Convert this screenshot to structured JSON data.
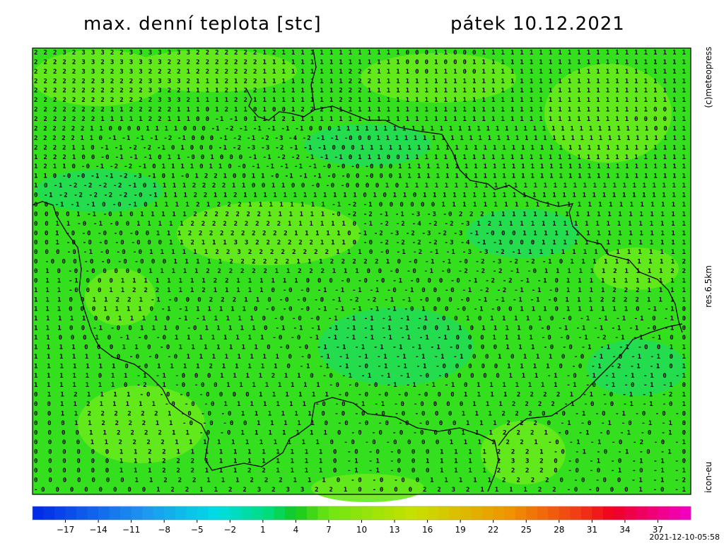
{
  "header": {
    "title": "max. denní teplota [stc]",
    "date": "pátek 10.12.2021"
  },
  "side_labels": {
    "copyright": "(c)meteopress",
    "resolution": "res.6.5km",
    "model": "icon-eu"
  },
  "timestamp": "2021-12-10-05:58",
  "colorbar": {
    "lim": [
      -20,
      40
    ],
    "ticks": [
      {
        "value": -17,
        "label": "−17"
      },
      {
        "value": -14,
        "label": "−14"
      },
      {
        "value": -11,
        "label": "−11"
      },
      {
        "value": -8,
        "label": "−8"
      },
      {
        "value": -5,
        "label": "−5"
      },
      {
        "value": -2,
        "label": "−2"
      },
      1,
      4,
      7,
      10,
      13,
      16,
      19,
      22,
      25,
      28,
      31,
      34,
      37
    ]
  },
  "grid": {
    "rows": [
      "2 2 2 3 2 3 3 3 2 2 3 3 3 3 3 3 3 2 2 2 2 2 2 2 1 2 1 1 1 1 1 1 1 1 1 1 1 1 1 0 0 0 1 1 0 0 0 1 1 1 1 1 1 1 1 1 1 1 1 1 1 1 1 1 1 1 1 1 1",
      "2 2 2 2 2 3 3 2 3 3 3 3 3 3 2 2 2 2 2 2 2 2 2 2 1 1 1 1 1 1 1 1 1 1 1 1 1 1 1 0 0 0 1 0 0 0 1 1 1 1 1 1 1 1 1 1 1 1 1 1 1 1 1 1 1 1 1 1 1",
      "2 2 2 2 2 3 3 2 2 3 3 3 2 2 2 2 1 2 2 2 2 2 2 2 1 1 1 1 1 1 1 1 1 2 2 2 1 1 1 1 0 0 1 1 1 0 0 1 1 1 1 1 1 1 1 1 1 1 1 1 1 1 1 1 1 1 1 1 1",
      "2 2 2 2 2 2 2 3 2 2 2 2 3 3 3 3 2 1 1 1 2 1 2 2 1 1 1 1 1 1 1 1 1 2 2 2 1 1 1 1 1 1 1 1 1 1 1 1 1 1 1 1 1 1 1 1 1 1 1 1 1 1 1 1 1 1 1 1 1",
      "2 2 2 2 2 2 2 2 2 2 2 2 3 3 2 2 1 1 1 1 2 1 2 2 1 1 1 1 1 1 1 1 2 2 2 1 1 1 1 1 1 1 1 1 1 1 1 1 1 1 1 1 1 1 1 1 1 1 1 1 1 1 1 1 1 1 1 1 1",
      "2 2 2 2 2 2 2 2 2 2 2 2 2 3 3 3 2 1 1 1 1 2 2 1 1 1 1 1 1 1 1 1 2 2 1 1 1 1 1 1 1 1 1 1 1 1 1 1 1 1 1 1 1 1 1 1 1 1 1 1 1 1 1 1 1 1 1 1 1",
      "2 2 2 2 2 2 2 2 1 1 2 2 2 2 2 1 1 1 0 1 2 1 1 0 1 0 0 1 2 2 2 1 1 1 1 1 1 1 1 1 1 1 1 1 1 1 1 1 1 1 1 1 1 1 1 1 1 1 1 1 1 1 1 1 1 0 0 1 1",
      "2 2 2 2 2 2 2 1 1 1 1 1 2 2 1 1 1 0 0 -1 -1 0 1 1 1 2 1 1 1 1 1 1 1 1 1 1 1 1 1 1 1 1 1 1 1 1 1 1 1 1 1 1 1 1 1 1 1 1 1 1 1 1 0 0 0 0 1 1",
      "2 2 2 2 2 2 1 1 0 0 0 0 1 1 1 1 0 0 0 -1 -2 -1 -1 -1 -1 -1 0 0 0 1 1 1 1 1 1 1 1 1 1 1 1 1 1 1 1 1 1 1 1 1 1 1 1 1 1 1 1 1 1 1 1 1 1 0 0 1 1",
      "2 2 2 2 2 1 1 0 -1 -1 -1 -1 -2 -1 0 0 0 -1 -2 -1 -2 -3 -4 -2 -1 -1 -0 0 0 1 1 1 1 1 1 1 1 1 1 1 1 1 1 1 1 1 1 1 1 1 1 1 1 1 1 1 1 1 1 1 1 1 1",
      "2 2 2 2 1 1 0 -1 -1 -2 -2 -1 0 1 0 0 0 -1 -2 -3 -3 -2 -1 -1 -1 0 0 0 1 1 1 1 1 1 1 1 1 1 1 1 1 1 1 1 1 1 1 1 1 1 1 1 1 1 1 1 1 1 1 1 1 1 1",
      "1 2 2 2 1 0 0 -0 -1 -1 -1 0 1 1 -0 0 1 0 0 0 -1 -1 -2 -2 -1 -1 -1 0 1 1 1 0 0 1 1 1 1 1 1 1 1 1 1 1 1 1 1 1 1 1 1 1 1 1 1 1 1 1 1 1 1 1 1",
      "1 2 1 1 0 -0 -1 -2 -2 -1 0 1 1 1 1 0 1 1 0 -0 -1 -1 -1 -1 -1 -0 -0 -0 -0 0 0 1 1 1 1 1 1 1 1 1 1 1 1 1 1 1 1 1 1 1 1 1 1 1 1 1 1 1 1 1 1 1",
      "1 1 0 -0 -0 -1 -1 -2 -3 -1 0 1 -0 1 2 2 1 0 0 1 1 -0 -1 -1 -1 -0 -0 0 -0 0 0 1 1 1 1 1 1 1 1 1 1 1 1 1 1 1 1 1 1 1 1 1 1 1 1 1 1 1 1 1 1 1",
      "1 0 -1 -2 -2 -2 -2 -1 0 1 1 1 1 2 2 2 2 1 1 0 0 1 1 0 0 -0 -0 -0 0 0 0 1 0 1 1 1 1 1 1 1 1 1 1 1 1 1 1 1 1 1 1 1 1 1 1 1 1 1 1 1 1 1",
      "0 -1 -2 -2 -2 -2 -2 -0 -1 1 1 1 2 2 1 1 2 1 1 1 1 1 1 1 1 1 1 1 1 0 1 0 1 1 0 1 1 1 1 1 1 1 1 1 1 1 1 1 1 1 1 1 1 1 1 1 1 1 1 1 1 1",
      "0 0 -1 -1 -1 0 -0 -1 0 1 1 1 1 2 1 2 2 2 1 1 1 1 1 1 1 1 -1 -2 -1 0 0 0 0 0 0 1 1 1 1 1 1 1 1 1 1 1 1 1 1 1 1 1 1 1 1 1 1 1 1",
      "0 0 0 0 1 -1 -0 1 0 1 1 1 1 1 2 2 2 2 2 2 2 1 1 1 1 1 1 -0 -2 -2 -1 -1 -3 -3 -0 2 2 2 1 1 1 1 1 1 1 1 1 1 1 1 1 1 1 1 1 1 1",
      "0 0 1 1 -0 -1 -0 0 1 1 1 1 1 2 2 2 2 2 2 2 2 2 1 1 1 1 1 1 0 -1 -2 -2 -4 -2 -2 -3 1 2 1 1 1 1 1 1 1 1 1 1 1 1 1 1 1 1 1 1",
      "0 0 1 -0 -0 -0 -0 -0 0 1 1 1 2 2 2 2 2 2 2 2 2 2 1 1 1 1 1 0 -1 -2 -3 -2 -3 -2 -3 -1 -0 0 0 1 1 1 1 1 1 1 1 1 1 1 1 1 1 1 1",
      "0 0 1 -0 -0 -0 -0 -0 0 0 1 1 2 1 1 1 3 3 2 2 2 2 2 2 1 1 1 0 -0 -2 -2 -2 -2 -3 -4 -1 -1 0 0 0 1 1 1 1 1 1 1 1 1 1 1 1 1 1",
      "0 0 0 -0 -1 -0 -0 -0 1 1 1 1 1 1 2 2 3 2 2 2 2 2 2 2 2 1 1 1 0 -0 -1 -2 -1 -1 -3 -3 -2 -1 1 1 1 1 1 1 1 1 1 1 1 1 1 1 1",
      "0 -0 0 0 -0 -0 -0 -0 0 0 1 1 1 1 1 2 2 2 2 2 2 1 1 1 2 2 2 2 2 1 0 -0 -1 -1 -0 -2 -3 -2 -2 -1 0 1 1 1 1 1 1 1 1 1 1 2",
      "0 1 0 -0 -0 0 0 0 0 1 1 1 1 1 2 2 2 2 2 2 1 1 2 2 2 1 1 1 0 0 -0 -0 -1 -0 -2 -2 -2 -1 -0 1 1 1 1 1 1 2 1 1 1 1 2 2",
      "0 1 1 -1 0 0 0 1 1 1 1 1 1 1 1 2 2 1 1 1 1 1 1 0 0 0 -0 -0 -0 -1 -0 0 0 -0 -1 -2 -2 -1 -1 0 1 1 1 1 1 1 1 1 1 1 1",
      "1 1 1 -0 0 0 1 1 2 2 2 1 1 1 2 1 1 1 1 1 0 -0 -0 -1 -1 -1 -1 -0 -1 0 0 -0 -1 -2 -2 -1 -1 -0 1 1 1 1 2 2 2 1 1 1 1",
      "1 1 1 0 0 1 1 2 2 1 -1 -0 0 0 2 2 2 1 1 0 -0 -0 -0 -1 -2 -2 -1 -1 -0 0 0 -0 -1 -1 -1 -1 -0 1 1 1 2 2 2 2 1 1 1 1",
      "1 1 1 0 0 0 1 1 1 1 0 -1 -1 1 1 1 1 1 0 -0 -0 -0 -1 -1 -1 -1 -1 -0 1 0 0 -0 -1 -0 0 1 1 1 0 1 1 1 1 1 1 0 -1 -1 0",
      "1 1 1 1 1 0 0 1 1 1 1 0 -1 -1 1 1 1 1 0 -0 -0 -0 -1 -1 -1 -1 -1 -1 -0 0 1 0 1 1 1 1 1 0 -0 -1 -1 -1 -1 0 -1 0",
      "1 1 1 0 0 -1 -0 0 1 1 1 0 -0 1 1 1 1 1 0 -1 -1 -1 -1 -1 -1 -1 -1 -0 0 1 1 0 1 1 1 1 0 -0 -1 -1 -1 -1 -1 -0 -1 0",
      "1 1 0 0 0 1 0 -1 -0 -0 1 1 1 1 1 1 1 1 -0 -0 -1 -1 -1 -1 -1 -1 -1 -1 0 0 0 1 1 1 1 -0 -0 -1 -2 -1 -1 -1 0 0",
      "1 1 1 1 0 0 0 1 1 0 -0 1 1 1 1 1 1 1 0 -0 -0 -1 -1 -1 -1 -1 -1 -1 -0 0 0 0 1 1 1 -0 -0 -1 -1 -1 -0 0 1 1",
      "1 1 1 1 1 1 -0 -0 -0 -0 1 1 1 1 1 1 1 1 0 -0 -1 -1 -1 -1 -1 -1 -1 -1 0 0 1 0 1 1 1 0 -0 -1 -0 -1 -1 0 1",
      "1 1 1 1 1 1 1 0 -0 1 1 1 1 2 1 1 1 1 1 0 -1 -1 -1 -0 -1 -1 -1 -0 0 0 0 0 1 1 1 1 0 -0 -1 -2 -1 -1 0 1",
      "1 1 1 1 1 0 1 1 -1 -1 -0 0 0 1 1 1 1 2 1 1 0 -0 -1 -1 -1 -1 -0 -0 0 0 0 0 1 1 1 -1 -0 -1 -1 -1 -1 0 -1",
      "1 1 1 1 1 1 1 0 -2 -1 -0 -0 0 1 1 1 1 1 1 1 1 -0 -0 -0 -1 -1 -1 -1 0 1 1 1 1 1 1 1 -1 -0 -1 -0 -1 -1 0",
      "0 1 1 2 1 1 1 1 -0 -0 -0 -0 0 0 0 1 1 1 1 1 1 -0 -0 -0 -0 -0 0 0 1 1 1 1 2 2 2 2 1 -1 -0 -1 -1 -2 1",
      "0 0 1 1 2 1 1 1 1 1 -0 -0 -0 1 1 1 1 1 1 1 -0 -0 -1 -1 -0 -0 0 0 0 1 1 1 2 2 2 2 -1 -0 -0 -1 -1 -0 1",
      "0 0 1 1 2 2 2 2 2 2 1 -0 -0 -0 1 1 1 1 1 1 0 -0 -0 -0 -0 -0 0 0 1 1 1 2 2 2 0 -0 -1 -0 -1 -0 -0 -0",
      "0 0 0 1 1 2 2 2 2 1 1 -0 -0 -0 0 1 1 1 1 1 0 -0 -0 -0 -0 -0 0 0 1 1 1 2 2 2 0 -1 -0 -1 -0 -1 -1 0",
      "0 0 0 0 1 1 2 2 2 2 1 1 -0 -0 1 1 1 1 1 1 1 0 -0 -0 -0 -0 0 0 1 1 1 2 2 2 1 -0 -1 -0 -1 -0 -1 0",
      "0 0 0 0 1 1 2 2 2 2 1 1 1 1 1 1 1 1 1 1 1 0 -0 -0 -0 0 0 0 1 1 1 2 2 2 1 -0 -1 -1 -0 -2 -0 -1",
      "0 0 0 0 0 0 1 1 2 2 1 1 1 1 1 1 1 1 1 1 1 0 -0 -0 -0 0 0 1 1 1 1 2 2 2 1 -0 -1 -0 -1 -0 -1 0",
      "0 0 0 0 0 0 1 1 1 2 2 2 1 1 1 1 1 1 1 1 1 0 -1 -1 -0 0 1 1 1 1 1 2 3 3 2 0 -0 -1 -0 -1 -1 -0",
      "0 0 0 0 0 0 1 1 1 2 2 2 1 1 1 2 2 1 1 1 1 0 -1 -1 -0 0 0 1 1 1 1 2 2 2 2 0 -0 -0 -1 -0 -1 -1",
      "0 0 0 0 0 0 0 1 1 2 2 2 1 1 1 2 2 2 1 1 1 0 -0 -0 -0 0 1 1 1 1 1 2 2 2 2 0 -0 -0 0 -1 -1 -2",
      "-0 0 0 0 0 0 0 0 1 2 2 1 1 2 2 3 2 3 3 2 2 1 0 -0 0 0 2 2 3 2 1 1 1 1 2 2 -0 -0 0 0 1 -0 -1"
    ]
  }
}
